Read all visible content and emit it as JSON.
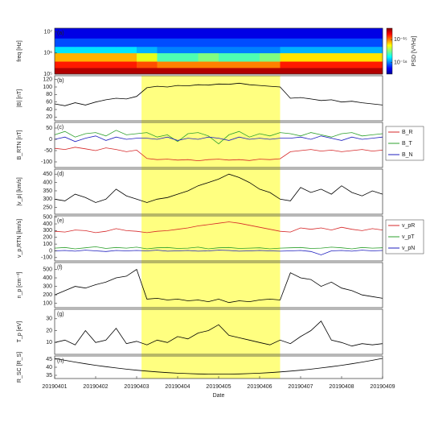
{
  "chart_data": [
    {
      "type": "heatmap",
      "label": "(a)",
      "ylabel": "freq [Hz]",
      "log": true,
      "xlim": [
        0,
        8
      ],
      "ylim": [
        100000,
        15000000
      ],
      "yticks": [
        {
          "value": 100000,
          "label": "10⁵"
        },
        {
          "value": 1000000,
          "label": "10⁶"
        },
        {
          "value": 10000000,
          "label": "10⁷"
        }
      ],
      "x_edges": [
        0,
        0.5,
        1,
        1.5,
        2,
        2.5,
        3,
        3.5,
        4,
        4.5,
        5,
        5.5,
        6,
        6.5,
        7,
        7.5,
        8
      ],
      "y_edges": [
        100000,
        200000,
        400000,
        1000000,
        2000000,
        5000000,
        15000000
      ],
      "z": [
        [
          -14.6,
          -14.6,
          -14.6,
          -14.6,
          -14.6,
          -14.6,
          -14.6,
          -14.6,
          -14.6,
          -14.6,
          -14.6,
          -14.6,
          -14.6,
          -14.6,
          -14.6,
          -14.6
        ],
        [
          -14.8,
          -14.8,
          -14.8,
          -14.8,
          -14.9,
          -15.0,
          -15.0,
          -15.0,
          -15.0,
          -15.0,
          -15.0,
          -14.8,
          -14.8,
          -14.8,
          -14.8,
          -14.8
        ],
        [
          -15.1,
          -15.1,
          -15.1,
          -15.1,
          -15.3,
          -15.6,
          -15.6,
          -15.5,
          -15.6,
          -15.6,
          -15.5,
          -15.2,
          -15.2,
          -15.2,
          -15.2,
          -15.2
        ],
        [
          -15.8,
          -15.8,
          -15.8,
          -15.8,
          -15.9,
          -16.0,
          -16.0,
          -16.0,
          -16.0,
          -16.0,
          -16.0,
          -15.9,
          -15.9,
          -15.9,
          -15.9,
          -15.9
        ],
        [
          -16.1,
          -16.1,
          -16.1,
          -16.1,
          -16.1,
          -16.1,
          -16.1,
          -16.1,
          -16.1,
          -16.1,
          -16.1,
          -16.1,
          -16.1,
          -16.1,
          -16.1,
          -16.1
        ],
        [
          -16.3,
          -16.3,
          -16.3,
          -16.3,
          -16.3,
          -16.3,
          -16.3,
          -16.3,
          -16.3,
          -16.3,
          -16.3,
          -16.3,
          -16.3,
          -16.3,
          -16.3,
          -16.3
        ]
      ],
      "clim": [
        -16.5,
        -14.5
      ],
      "cbar_label": "PSD [V²/Hz]",
      "cbar_ticks": [
        {
          "value": -15,
          "label": "10⁻¹⁵"
        },
        {
          "value": -16,
          "label": "10⁻¹⁶"
        }
      ]
    },
    {
      "type": "line",
      "label": "(b)",
      "ylabel": "|B| [nT]",
      "xlim": [
        0,
        8
      ],
      "ylim": [
        10,
        130
      ],
      "yticks": [
        20,
        40,
        60,
        80,
        100,
        120
      ],
      "x": [
        0,
        0.25,
        0.5,
        0.75,
        1,
        1.25,
        1.5,
        1.75,
        2,
        2.25,
        2.5,
        2.75,
        3,
        3.25,
        3.5,
        3.75,
        4,
        4.25,
        4.5,
        4.75,
        5,
        5.25,
        5.5,
        5.75,
        6,
        6.25,
        6.5,
        6.75,
        7,
        7.25,
        7.5,
        7.75,
        8
      ],
      "series": [
        {
          "color": "#000000",
          "values": [
            55,
            50,
            58,
            52,
            60,
            66,
            70,
            68,
            75,
            98,
            102,
            100,
            104,
            103,
            106,
            105,
            108,
            107,
            110,
            106,
            104,
            102,
            100,
            70,
            72,
            68,
            64,
            66,
            60,
            62,
            58,
            55,
            52
          ]
        }
      ]
    },
    {
      "type": "line",
      "label": "(c)",
      "ylabel": "B_RTN [nT]",
      "xlim": [
        0,
        8
      ],
      "ylim": [
        -125,
        75
      ],
      "yticks": [
        -100,
        -50,
        0,
        50
      ],
      "x": [
        0,
        0.25,
        0.5,
        0.75,
        1,
        1.25,
        1.5,
        1.75,
        2,
        2.25,
        2.5,
        2.75,
        3,
        3.25,
        3.5,
        3.75,
        4,
        4.25,
        4.5,
        4.75,
        5,
        5.25,
        5.5,
        5.75,
        6,
        6.25,
        6.5,
        6.75,
        7,
        7.25,
        7.5,
        7.75,
        8
      ],
      "series": [
        {
          "name": "B_R",
          "color": "#d62728",
          "values": [
            -40,
            -45,
            -35,
            -42,
            -50,
            -38,
            -45,
            -55,
            -48,
            -85,
            -90,
            -88,
            -92,
            -90,
            -95,
            -90,
            -88,
            -92,
            -90,
            -94,
            -88,
            -90,
            -86,
            -55,
            -50,
            -45,
            -52,
            -48,
            -55,
            -50,
            -45,
            -52,
            -48
          ]
        },
        {
          "name": "B_T",
          "color": "#2ca02c",
          "values": [
            20,
            35,
            10,
            25,
            30,
            15,
            40,
            20,
            25,
            30,
            10,
            20,
            -10,
            25,
            30,
            15,
            -20,
            20,
            35,
            10,
            25,
            15,
            30,
            25,
            15,
            30,
            20,
            10,
            25,
            30,
            15,
            20,
            25
          ]
        },
        {
          "name": "B_N",
          "color": "#1f1fbf",
          "values": [
            0,
            10,
            -10,
            5,
            15,
            -5,
            10,
            0,
            5,
            5,
            0,
            10,
            -5,
            5,
            0,
            10,
            5,
            -5,
            10,
            0,
            5,
            0,
            5,
            5,
            10,
            0,
            15,
            5,
            -5,
            10,
            0,
            5,
            10
          ]
        }
      ]
    },
    {
      "type": "line",
      "label": "(d)",
      "ylabel": "|v_p| [km/s]",
      "xlim": [
        0,
        8
      ],
      "ylim": [
        210,
        480
      ],
      "yticks": [
        250,
        300,
        350,
        400,
        450
      ],
      "x": [
        0,
        0.25,
        0.5,
        0.75,
        1,
        1.25,
        1.5,
        1.75,
        2,
        2.25,
        2.5,
        2.75,
        3,
        3.25,
        3.5,
        3.75,
        4,
        4.25,
        4.5,
        4.75,
        5,
        5.25,
        5.5,
        5.75,
        6,
        6.25,
        6.5,
        6.75,
        7,
        7.25,
        7.5,
        7.75,
        8
      ],
      "series": [
        {
          "color": "#000000",
          "values": [
            300,
            290,
            330,
            310,
            280,
            300,
            360,
            320,
            300,
            280,
            300,
            310,
            330,
            350,
            380,
            400,
            420,
            450,
            430,
            400,
            360,
            340,
            300,
            290,
            370,
            340,
            360,
            330,
            380,
            340,
            320,
            350,
            330
          ]
        }
      ]
    },
    {
      "type": "line",
      "label": "(e)",
      "ylabel": "v_p,RTN [km/s]",
      "xlim": [
        0,
        8
      ],
      "ylim": [
        -150,
        520
      ],
      "yticks": [
        -100,
        0,
        100,
        200,
        300,
        400,
        500
      ],
      "x": [
        0,
        0.25,
        0.5,
        0.75,
        1,
        1.25,
        1.5,
        1.75,
        2,
        2.25,
        2.5,
        2.75,
        3,
        3.25,
        3.5,
        3.75,
        4,
        4.25,
        4.5,
        4.75,
        5,
        5.25,
        5.5,
        5.75,
        6,
        6.25,
        6.5,
        6.75,
        7,
        7.25,
        7.5,
        7.75,
        8
      ],
      "series": [
        {
          "name": "v_pR",
          "color": "#d62728",
          "values": [
            290,
            280,
            310,
            300,
            270,
            290,
            330,
            300,
            290,
            270,
            290,
            300,
            320,
            340,
            370,
            390,
            410,
            430,
            410,
            380,
            350,
            320,
            290,
            280,
            340,
            320,
            340,
            310,
            350,
            320,
            300,
            330,
            310
          ]
        },
        {
          "name": "v_pT",
          "color": "#2ca02c",
          "values": [
            40,
            50,
            30,
            45,
            60,
            35,
            50,
            40,
            55,
            30,
            45,
            50,
            35,
            40,
            55,
            30,
            45,
            50,
            35,
            40,
            45,
            30,
            40,
            45,
            50,
            35,
            40,
            55,
            45,
            30,
            50,
            40,
            45
          ]
        },
        {
          "name": "v_pN",
          "color": "#1f1fbf",
          "values": [
            0,
            5,
            -5,
            10,
            0,
            -10,
            5,
            0,
            5,
            0,
            10,
            -5,
            0,
            5,
            -5,
            0,
            10,
            5,
            -5,
            0,
            5,
            0,
            -5,
            0,
            5,
            -10,
            -60,
            0,
            5,
            -5,
            10,
            0,
            5
          ]
        }
      ]
    },
    {
      "type": "line",
      "label": "(f)",
      "ylabel": "n_p [cm⁻³]",
      "xlim": [
        0,
        8
      ],
      "ylim": [
        50,
        580
      ],
      "yticks": [
        100,
        200,
        300,
        400,
        500
      ],
      "x": [
        0,
        0.25,
        0.5,
        0.75,
        1,
        1.25,
        1.5,
        1.75,
        2,
        2.25,
        2.5,
        2.75,
        3,
        3.25,
        3.5,
        3.75,
        4,
        4.25,
        4.5,
        4.75,
        5,
        5.25,
        5.5,
        5.75,
        6,
        6.25,
        6.5,
        6.75,
        7,
        7.25,
        7.5,
        7.75,
        8
      ],
      "series": [
        {
          "color": "#000000",
          "values": [
            200,
            250,
            300,
            280,
            320,
            350,
            400,
            420,
            500,
            150,
            160,
            140,
            150,
            130,
            140,
            120,
            150,
            110,
            130,
            120,
            140,
            150,
            140,
            460,
            400,
            380,
            300,
            350,
            280,
            250,
            200,
            180,
            160
          ]
        }
      ]
    },
    {
      "type": "line",
      "label": "(g)",
      "ylabel": "T_p [eV]",
      "xlim": [
        0,
        8
      ],
      "ylim": [
        0,
        38
      ],
      "yticks": [
        10,
        20,
        30
      ],
      "x": [
        0,
        0.25,
        0.5,
        0.75,
        1,
        1.25,
        1.5,
        1.75,
        2,
        2.25,
        2.5,
        2.75,
        3,
        3.25,
        3.5,
        3.75,
        4,
        4.25,
        4.5,
        4.75,
        5,
        5.25,
        5.5,
        5.75,
        6,
        6.25,
        6.5,
        6.75,
        7,
        7.25,
        7.5,
        7.75,
        8
      ],
      "series": [
        {
          "color": "#000000",
          "values": [
            10,
            12,
            8,
            20,
            10,
            12,
            22,
            9,
            11,
            8,
            12,
            10,
            15,
            13,
            18,
            20,
            25,
            16,
            14,
            12,
            10,
            8,
            12,
            9,
            15,
            20,
            28,
            12,
            10,
            7,
            9,
            8,
            9
          ]
        }
      ]
    },
    {
      "type": "line",
      "label": "(h)",
      "ylabel": "R_SC [R_S]",
      "xlabel": "Date",
      "xlim": [
        0,
        8
      ],
      "ylim": [
        33,
        47
      ],
      "yticks": [
        35,
        40,
        45
      ],
      "xticks": [
        {
          "value": 0,
          "label": "20190401"
        },
        {
          "value": 1,
          "label": "20190402"
        },
        {
          "value": 2,
          "label": "20190403"
        },
        {
          "value": 3,
          "label": "20190404"
        },
        {
          "value": 4,
          "label": "20190405"
        },
        {
          "value": 5,
          "label": "20190406"
        },
        {
          "value": 6,
          "label": "20190407"
        },
        {
          "value": 7,
          "label": "20190408"
        },
        {
          "value": 8,
          "label": "20190409"
        }
      ],
      "highlight": [
        2.12,
        5.5
      ],
      "x": [
        0,
        0.25,
        0.5,
        0.75,
        1,
        1.25,
        1.5,
        1.75,
        2,
        2.25,
        2.5,
        2.75,
        3,
        3.25,
        3.5,
        3.75,
        4,
        4.25,
        4.5,
        4.75,
        5,
        5.25,
        5.5,
        5.75,
        6,
        6.25,
        6.5,
        6.75,
        7,
        7.25,
        7.5,
        7.75,
        8
      ],
      "series": [
        {
          "color": "#000000",
          "values": [
            45.5,
            44.31,
            43.2,
            42.17,
            41.21,
            40.33,
            39.53,
            38.8,
            38.15,
            37.58,
            37.08,
            36.66,
            36.31,
            36.04,
            35.85,
            35.74,
            35.7,
            35.74,
            35.85,
            36.04,
            36.31,
            36.66,
            37.08,
            37.58,
            38.15,
            38.8,
            39.53,
            40.33,
            41.21,
            42.17,
            43.2,
            44.31,
            45.5
          ]
        }
      ]
    }
  ]
}
